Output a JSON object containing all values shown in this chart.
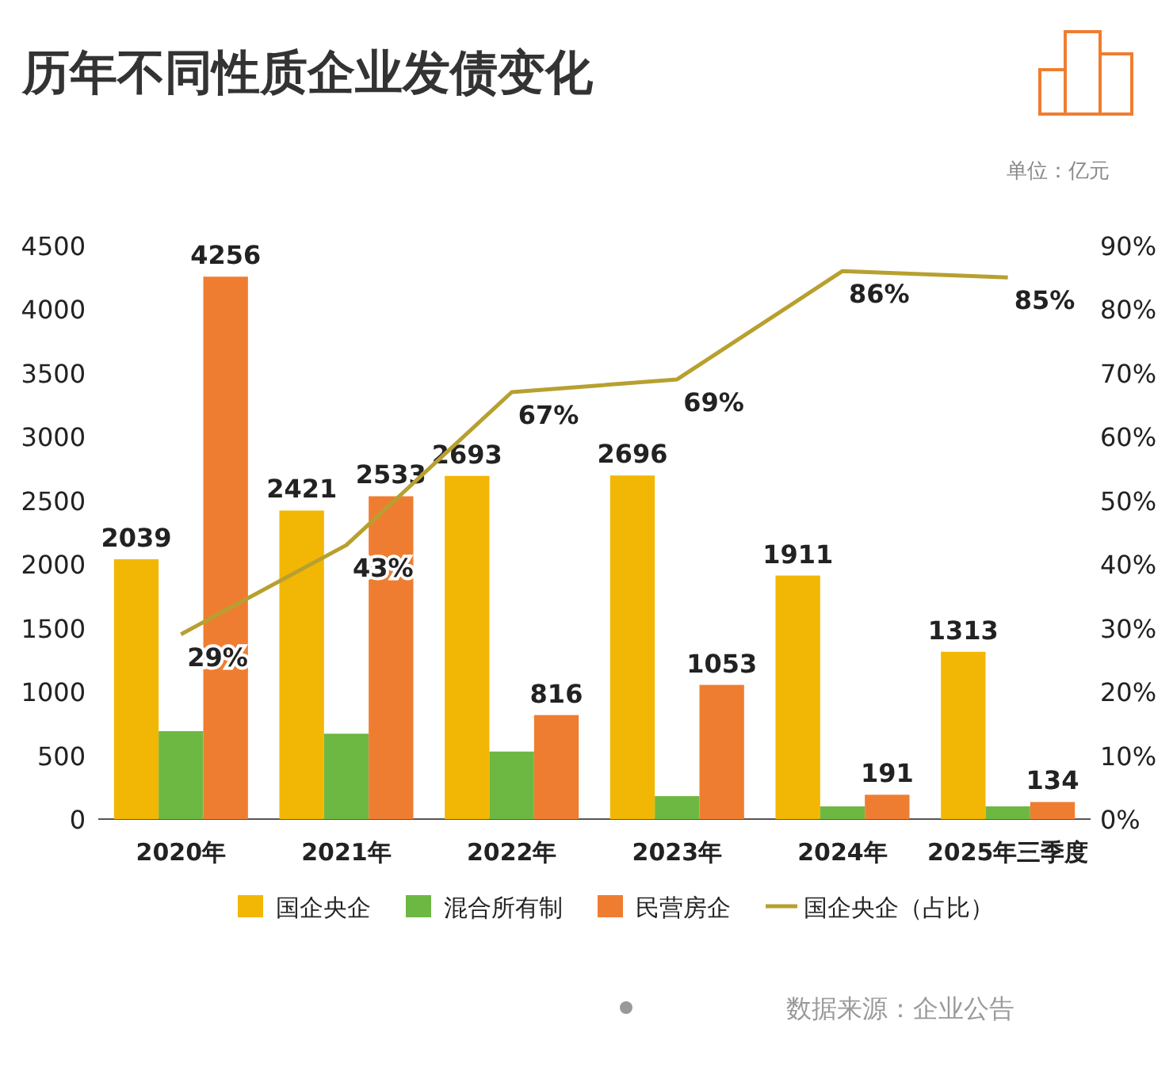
{
  "chart_data": {
    "type": "bar",
    "title": "历年不同性质企业发债变化",
    "annotations": [
      "单位：亿元",
      "数据来源：企业公告"
    ],
    "categories": [
      "2020年",
      "2021年",
      "2022年",
      "2023年",
      "2024年",
      "2025年三季度"
    ],
    "series": [
      {
        "name": "国企央企",
        "color": "#f2b705",
        "values": [
          2039,
          2421,
          2693,
          2696,
          1911,
          1313
        ],
        "value_labels": [
          "2039",
          "2421",
          "2693",
          "2696",
          "1911",
          "1313"
        ]
      },
      {
        "name": "混合所有制",
        "color": "#6db843",
        "values": [
          690,
          670,
          530,
          180,
          100,
          100
        ]
      },
      {
        "name": "民营房企",
        "color": "#ef7d31",
        "values": [
          4256,
          2533,
          816,
          1053,
          191,
          134
        ],
        "value_labels": [
          "4256",
          "2533",
          "816",
          "1053",
          "191",
          "134"
        ]
      },
      {
        "name": "国企央企（占比）",
        "type": "line",
        "axis": "y2",
        "color": "#b8a030",
        "values": [
          29,
          43,
          67,
          69,
          86,
          85
        ],
        "value_labels": [
          "29%",
          "43%",
          "67%",
          "69%",
          "86%",
          "85%"
        ]
      }
    ],
    "ylim": [
      0,
      4500
    ],
    "yticks": [
      0,
      500,
      1000,
      1500,
      2000,
      2500,
      3000,
      3500,
      4000,
      4500
    ],
    "y2lim": [
      0,
      90
    ],
    "y2ticks": [
      {
        "value": 0,
        "label": "0%"
      },
      {
        "value": 10,
        "label": "10%"
      },
      {
        "value": 20,
        "label": "20%"
      },
      {
        "value": 30,
        "label": "30%"
      },
      {
        "value": 40,
        "label": "40%"
      },
      {
        "value": 50,
        "label": "50%"
      },
      {
        "value": 60,
        "label": "60%"
      },
      {
        "value": 70,
        "label": "70%"
      },
      {
        "value": 80,
        "label": "80%"
      },
      {
        "value": 90,
        "label": "90%"
      }
    ],
    "grid": false,
    "legend": "bottom",
    "marker": "none"
  }
}
